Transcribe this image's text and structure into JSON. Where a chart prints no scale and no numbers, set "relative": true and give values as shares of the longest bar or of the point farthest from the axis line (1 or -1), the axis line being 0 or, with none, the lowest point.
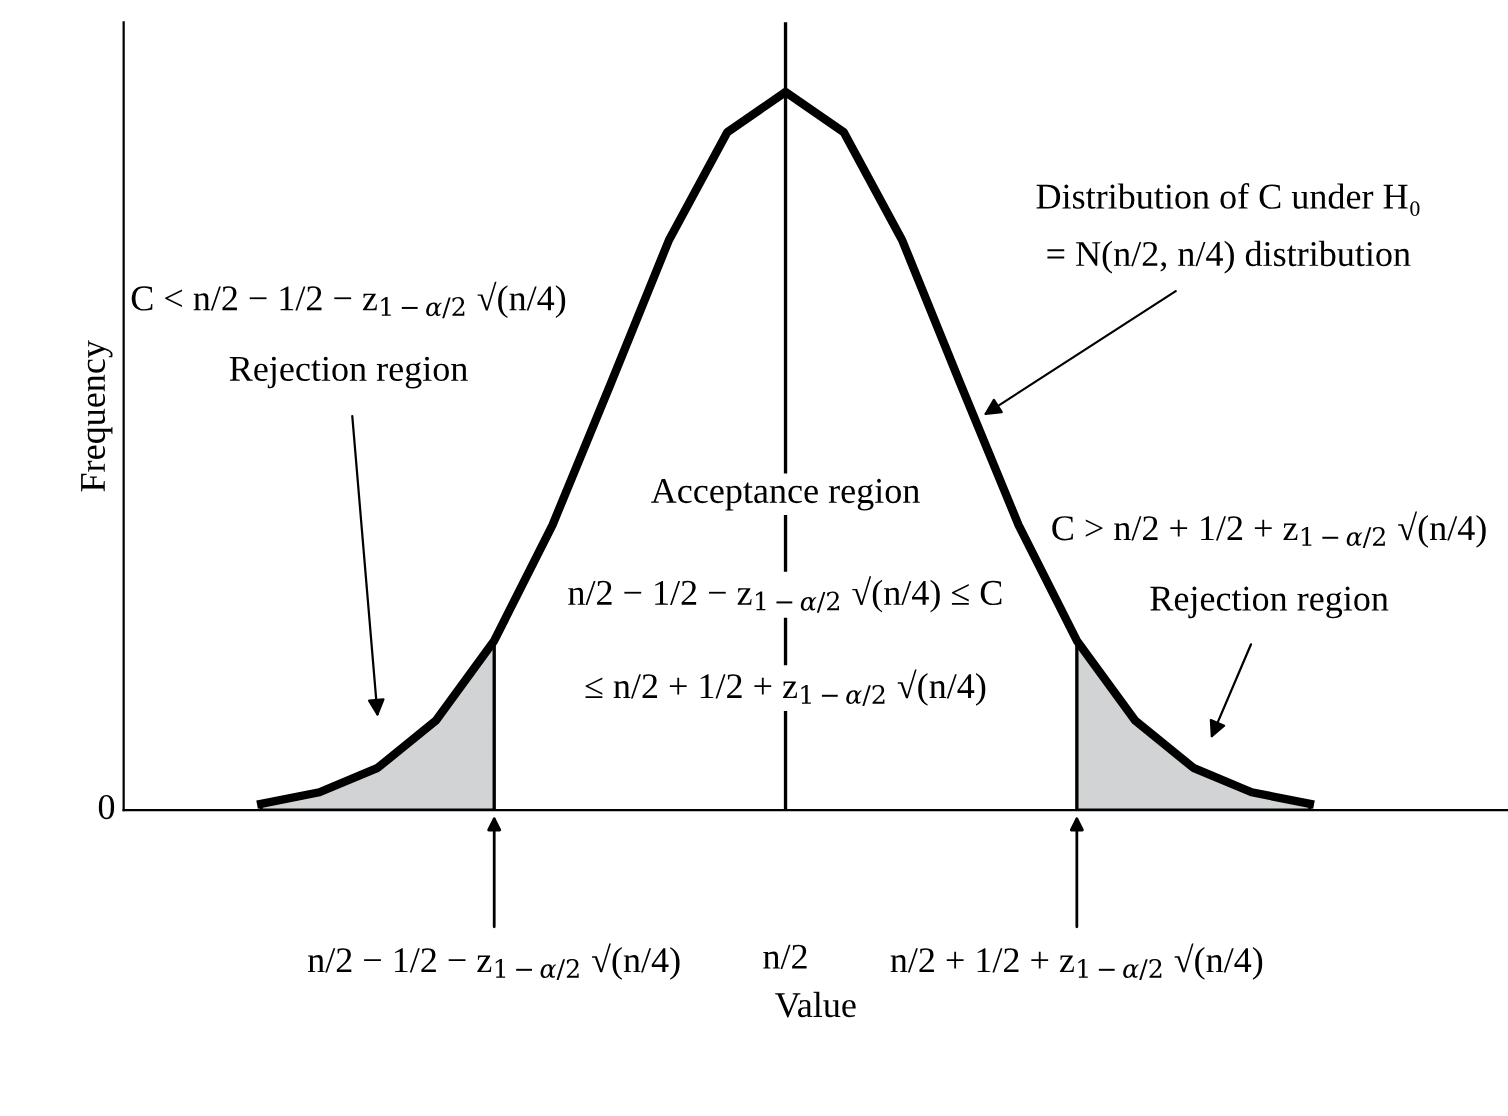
{
  "chart_data": {
    "type": "line",
    "relative": true,
    "xlabel": "Value",
    "ylabel": "Frequency",
    "categories": [
      null,
      null,
      null,
      null,
      "n/2 − 1/2 − z$_{1−α/2}$ √(n/4)",
      null,
      null,
      null,
      null,
      "n/2",
      null,
      null,
      null,
      null,
      "n/2 + 1/2 + z$_{1−α/2}$ √(n/4)",
      null,
      null,
      null,
      null
    ],
    "series": [
      {
        "color": "#000000",
        "values": [
          0.009,
          0.025,
          0.059,
          0.125,
          0.236,
          0.397,
          0.594,
          0.794,
          0.944,
          1,
          0.944,
          0.794,
          0.594,
          0.397,
          0.236,
          0.125,
          0.059,
          0.025,
          0.009
        ]
      },
      {
        "type": "area",
        "color": "#d1d3d4",
        "values": [
          0.009,
          0.025,
          0.059,
          0.125,
          0.236,
          null,
          null,
          null,
          null,
          null,
          null,
          null,
          null,
          null,
          null,
          null,
          null,
          null,
          null
        ]
      },
      {
        "type": "area",
        "color": "#d1d3d4",
        "values": [
          null,
          null,
          null,
          null,
          null,
          null,
          null,
          null,
          null,
          null,
          null,
          null,
          null,
          null,
          0.236,
          0.125,
          0.059,
          0.025,
          0.009
        ]
      }
    ],
    "ref_lines": [
      {
        "axis": "x",
        "value": "n/2",
        "color": "#000000"
      }
    ],
    "annotations": [
      "0",
      "Distribution of C under H₀",
      "= N(n/2, n/4) distribution",
      "C < n/2 − 1/2 − z$_{1−α/2}$ √(n/4)",
      "Rejection region",
      "C > n/2 + 1/2 + z$_{1−α/2}$ √(n/4)",
      "Rejection region",
      "Acceptance region",
      "n/2 − 1/2 − z$_{1−α/2}$ √(n/4) ≤ C",
      "≤ n/2 + 1/2 + z$_{1−α/2}$ √(n/4)"
    ]
  }
}
